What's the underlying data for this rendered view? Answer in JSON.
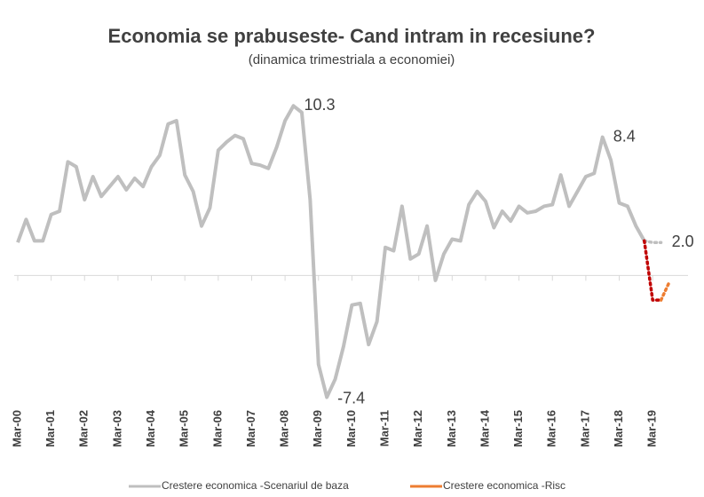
{
  "chart_data": {
    "type": "line",
    "title": "Economia se prabuseste- Cand intram in recesiune?",
    "subtitle": "(dinamica trimestriala a economiei)",
    "categories": [
      "Mar-00",
      null,
      null,
      null,
      "Mar-01",
      null,
      null,
      null,
      "Mar-02",
      null,
      null,
      null,
      "Mar-03",
      null,
      null,
      null,
      "Mar-04",
      null,
      null,
      null,
      "Mar-05",
      null,
      null,
      null,
      "Mar-06",
      null,
      null,
      null,
      "Mar-07",
      null,
      null,
      null,
      "Mar-08",
      null,
      null,
      null,
      "Mar-09",
      null,
      null,
      null,
      "Mar-10",
      null,
      null,
      null,
      "Mar-11",
      null,
      null,
      null,
      "Mar-12",
      null,
      null,
      null,
      "Mar-13",
      null,
      null,
      null,
      "Mar-14",
      null,
      null,
      null,
      "Mar-15",
      null,
      null,
      null,
      "Mar-16",
      null,
      null,
      null,
      "Mar-17",
      null,
      null,
      null,
      "Mar-18",
      null,
      null,
      null,
      "Mar-19",
      null,
      null
    ],
    "series": [
      {
        "name": "Crestere economica -Scenariul de baza",
        "color": "#bfbfbf",
        "style": "solid",
        "values": [
          2.0,
          3.4,
          2.1,
          2.1,
          3.7,
          3.9,
          6.9,
          6.6,
          4.6,
          6.0,
          4.8,
          5.4,
          6.0,
          5.2,
          5.9,
          5.4,
          6.6,
          7.3,
          9.2,
          9.4,
          6.1,
          5.1,
          3.0,
          4.1,
          7.6,
          8.1,
          8.5,
          8.3,
          6.8,
          6.7,
          6.5,
          7.8,
          9.4,
          10.3,
          9.9,
          4.6,
          -5.4,
          -7.4,
          -6.3,
          -4.3,
          -1.8,
          -1.7,
          -4.2,
          -2.8,
          1.7,
          1.5,
          4.2,
          1.0,
          1.3,
          3.0,
          -0.3,
          1.3,
          2.2,
          2.1,
          4.3,
          5.1,
          4.5,
          2.9,
          3.9,
          3.3,
          4.2,
          3.8,
          3.9,
          4.2,
          4.3,
          6.1,
          4.2,
          5.1,
          6.0,
          6.2,
          8.4,
          7.0,
          4.4,
          4.2,
          3.0,
          2.1,
          null,
          null,
          null
        ],
        "value_labels": [
          null,
          null,
          null,
          null,
          null,
          null,
          null,
          null,
          null,
          null,
          null,
          null,
          null,
          null,
          null,
          null,
          null,
          null,
          null,
          null,
          null,
          null,
          null,
          null,
          null,
          null,
          null,
          null,
          null,
          null,
          null,
          null,
          null,
          "10.3",
          null,
          null,
          null,
          "-7.4",
          null,
          null,
          null,
          null,
          null,
          null,
          null,
          null,
          null,
          null,
          null,
          null,
          null,
          null,
          null,
          null,
          null,
          null,
          null,
          null,
          null,
          null,
          null,
          null,
          null,
          null,
          null,
          null,
          null,
          null,
          null,
          null,
          "8.4",
          null,
          null,
          null,
          null,
          null,
          null,
          null,
          null
        ]
      },
      {
        "color": "#bfbfbf",
        "style": "dotted",
        "values": [
          null,
          null,
          null,
          null,
          null,
          null,
          null,
          null,
          null,
          null,
          null,
          null,
          null,
          null,
          null,
          null,
          null,
          null,
          null,
          null,
          null,
          null,
          null,
          null,
          null,
          null,
          null,
          null,
          null,
          null,
          null,
          null,
          null,
          null,
          null,
          null,
          null,
          null,
          null,
          null,
          null,
          null,
          null,
          null,
          null,
          null,
          null,
          null,
          null,
          null,
          null,
          null,
          null,
          null,
          null,
          null,
          null,
          null,
          null,
          null,
          null,
          null,
          null,
          null,
          null,
          null,
          null,
          null,
          null,
          null,
          null,
          null,
          null,
          null,
          null,
          2.1,
          2.0,
          2.0,
          null
        ],
        "value_labels": [
          null,
          null,
          null,
          null,
          null,
          null,
          null,
          null,
          null,
          null,
          null,
          null,
          null,
          null,
          null,
          null,
          null,
          null,
          null,
          null,
          null,
          null,
          null,
          null,
          null,
          null,
          null,
          null,
          null,
          null,
          null,
          null,
          null,
          null,
          null,
          null,
          null,
          null,
          null,
          null,
          null,
          null,
          null,
          null,
          null,
          null,
          null,
          null,
          null,
          null,
          null,
          null,
          null,
          null,
          null,
          null,
          null,
          null,
          null,
          null,
          null,
          null,
          null,
          null,
          null,
          null,
          null,
          null,
          null,
          null,
          null,
          null,
          null,
          null,
          null,
          null,
          null,
          "2.0",
          null
        ]
      },
      {
        "color": "#c00000",
        "style": "dotted",
        "values": [
          null,
          null,
          null,
          null,
          null,
          null,
          null,
          null,
          null,
          null,
          null,
          null,
          null,
          null,
          null,
          null,
          null,
          null,
          null,
          null,
          null,
          null,
          null,
          null,
          null,
          null,
          null,
          null,
          null,
          null,
          null,
          null,
          null,
          null,
          null,
          null,
          null,
          null,
          null,
          null,
          null,
          null,
          null,
          null,
          null,
          null,
          null,
          null,
          null,
          null,
          null,
          null,
          null,
          null,
          null,
          null,
          null,
          null,
          null,
          null,
          null,
          null,
          null,
          null,
          null,
          null,
          null,
          null,
          null,
          null,
          null,
          null,
          null,
          null,
          null,
          2.1,
          -1.5,
          -1.5,
          null
        ],
        "value_labels": [
          null,
          null,
          null,
          null,
          null,
          null,
          null,
          null,
          null,
          null,
          null,
          null,
          null,
          null,
          null,
          null,
          null,
          null,
          null,
          null,
          null,
          null,
          null,
          null,
          null,
          null,
          null,
          null,
          null,
          null,
          null,
          null,
          null,
          null,
          null,
          null,
          null,
          null,
          null,
          null,
          null,
          null,
          null,
          null,
          null,
          null,
          null,
          null,
          null,
          null,
          null,
          null,
          null,
          null,
          null,
          null,
          null,
          null,
          null,
          null,
          null,
          null,
          null,
          null,
          null,
          null,
          null,
          null,
          null,
          null,
          null,
          null,
          null,
          null,
          null,
          null,
          null,
          null,
          null
        ]
      },
      {
        "name": "Crestere economica -Risc",
        "color": "#ed7d31",
        "style": "dotted",
        "values": [
          null,
          null,
          null,
          null,
          null,
          null,
          null,
          null,
          null,
          null,
          null,
          null,
          null,
          null,
          null,
          null,
          null,
          null,
          null,
          null,
          null,
          null,
          null,
          null,
          null,
          null,
          null,
          null,
          null,
          null,
          null,
          null,
          null,
          null,
          null,
          null,
          null,
          null,
          null,
          null,
          null,
          null,
          null,
          null,
          null,
          null,
          null,
          null,
          null,
          null,
          null,
          null,
          null,
          null,
          null,
          null,
          null,
          null,
          null,
          null,
          null,
          null,
          null,
          null,
          null,
          null,
          null,
          null,
          null,
          null,
          null,
          null,
          null,
          null,
          null,
          null,
          null,
          -1.5,
          -0.4
        ]
      }
    ],
    "ylim": [
      -7.8,
      10.8
    ]
  }
}
